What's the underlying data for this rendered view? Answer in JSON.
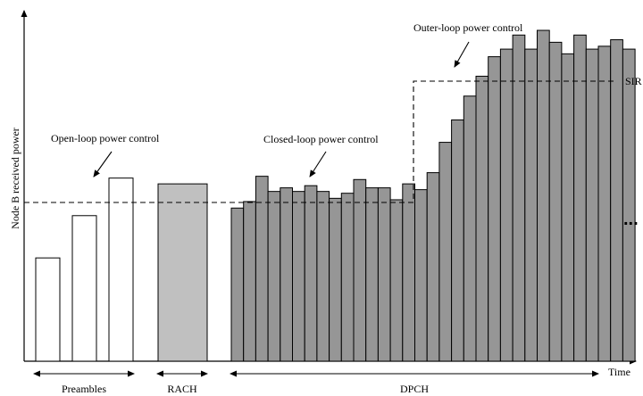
{
  "axes": {
    "y_label": "Node B received power",
    "x_label": "Time"
  },
  "annotations": {
    "open_loop": "Open-loop power control",
    "closed_loop": "Closed-loop power control",
    "outer_loop": "Outer-loop power control",
    "sir_target": "SIR",
    "continuation": "..."
  },
  "phases": {
    "preambles": "Preambles",
    "rach": "RACH",
    "dpch": "DPCH"
  },
  "colors": {
    "preamble_fill": "#ffffff",
    "rach_fill": "#c0c0c0",
    "dpch_fill": "#969696",
    "stroke": "#000000"
  },
  "chart_data": {
    "type": "bar",
    "y_range": [
      0,
      100
    ],
    "sir_levels": {
      "initial": 50.0,
      "raised": 86.4
    },
    "preambles": [
      28.6,
      40.3,
      50.7
    ],
    "rach": 49.1,
    "dpch": [
      42.4,
      44.2,
      51.2,
      47.0,
      48.0,
      47.0,
      48.6,
      47.0,
      45.1,
      46.5,
      50.3,
      48.0,
      48.0,
      44.7,
      49.1,
      47.5,
      52.2,
      60.6,
      66.8,
      73.4,
      78.9,
      84.3,
      86.4,
      90.3,
      86.4,
      91.6,
      88.3,
      85.1,
      90.3,
      86.4,
      87.2,
      89.0,
      86.4
    ]
  }
}
